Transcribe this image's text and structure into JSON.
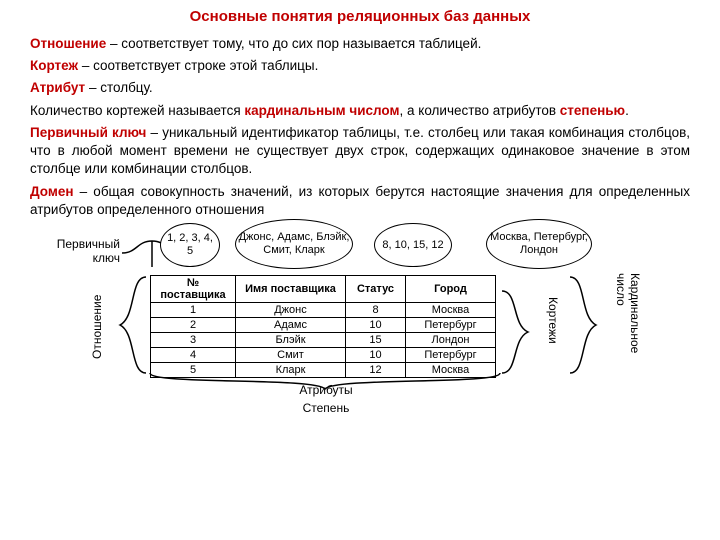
{
  "colors": {
    "red": "#c00000",
    "black": "#000000",
    "bg": "#ffffff"
  },
  "title": "Основные понятия реляционных баз данных",
  "paragraphs": {
    "p1_term": "Отношение",
    "p1_rest": " – соответствует тому, что до сих пор называется таблицей.",
    "p2_term": "Кортеж",
    "p2_rest": " – соответствует строке этой таблицы.",
    "p3_term": "Атрибут",
    "p3_rest": " – столбцу.",
    "p4_a": "Количество кортежей называется ",
    "p4_b": "кардинальным числом",
    "p4_c": ", а количество атрибутов ",
    "p4_d": "степенью",
    "p4_e": ".",
    "p5_term": "Первичный ключ",
    "p5_rest": " – уникальный идентификатор таблицы, т.е. столбец или такая комбинация столбцов, что в любой момент времени не существует двух строк, содержащих одинаковое значение в этом столбце или комбинации столбцов.",
    "p6_term": "Домен",
    "p6_rest": " – общая совокупность значений, из которых берутся настоящие значения для определенных атрибутов определенного отношения"
  },
  "bubbles": {
    "b1": "1, 2, 3, 4, 5",
    "b2": "Джонс, Адамс, Блэйк, Смит, Кларк",
    "b3": "8, 10, 15, 12",
    "b4": "Москва, Петербург, Лондон"
  },
  "labels": {
    "pk": "Первичный ключ",
    "relation": "Отношение",
    "tuples": "Кортежи",
    "cardinal": "Кардинальное число",
    "attributes": "Атрибуты",
    "degree": "Степень"
  },
  "table": {
    "headers": [
      "№ поставщика",
      "Имя поставщика",
      "Статус",
      "Город"
    ],
    "rows": [
      [
        "1",
        "Джонс",
        "8",
        "Москва"
      ],
      [
        "2",
        "Адамс",
        "10",
        "Петербург"
      ],
      [
        "3",
        "Блэйк",
        "15",
        "Лондон"
      ],
      [
        "4",
        "Смит",
        "10",
        "Петербург"
      ],
      [
        "5",
        "Кларк",
        "12",
        "Москва"
      ]
    ],
    "col_widths": [
      "85px",
      "110px",
      "60px",
      "90px"
    ]
  }
}
